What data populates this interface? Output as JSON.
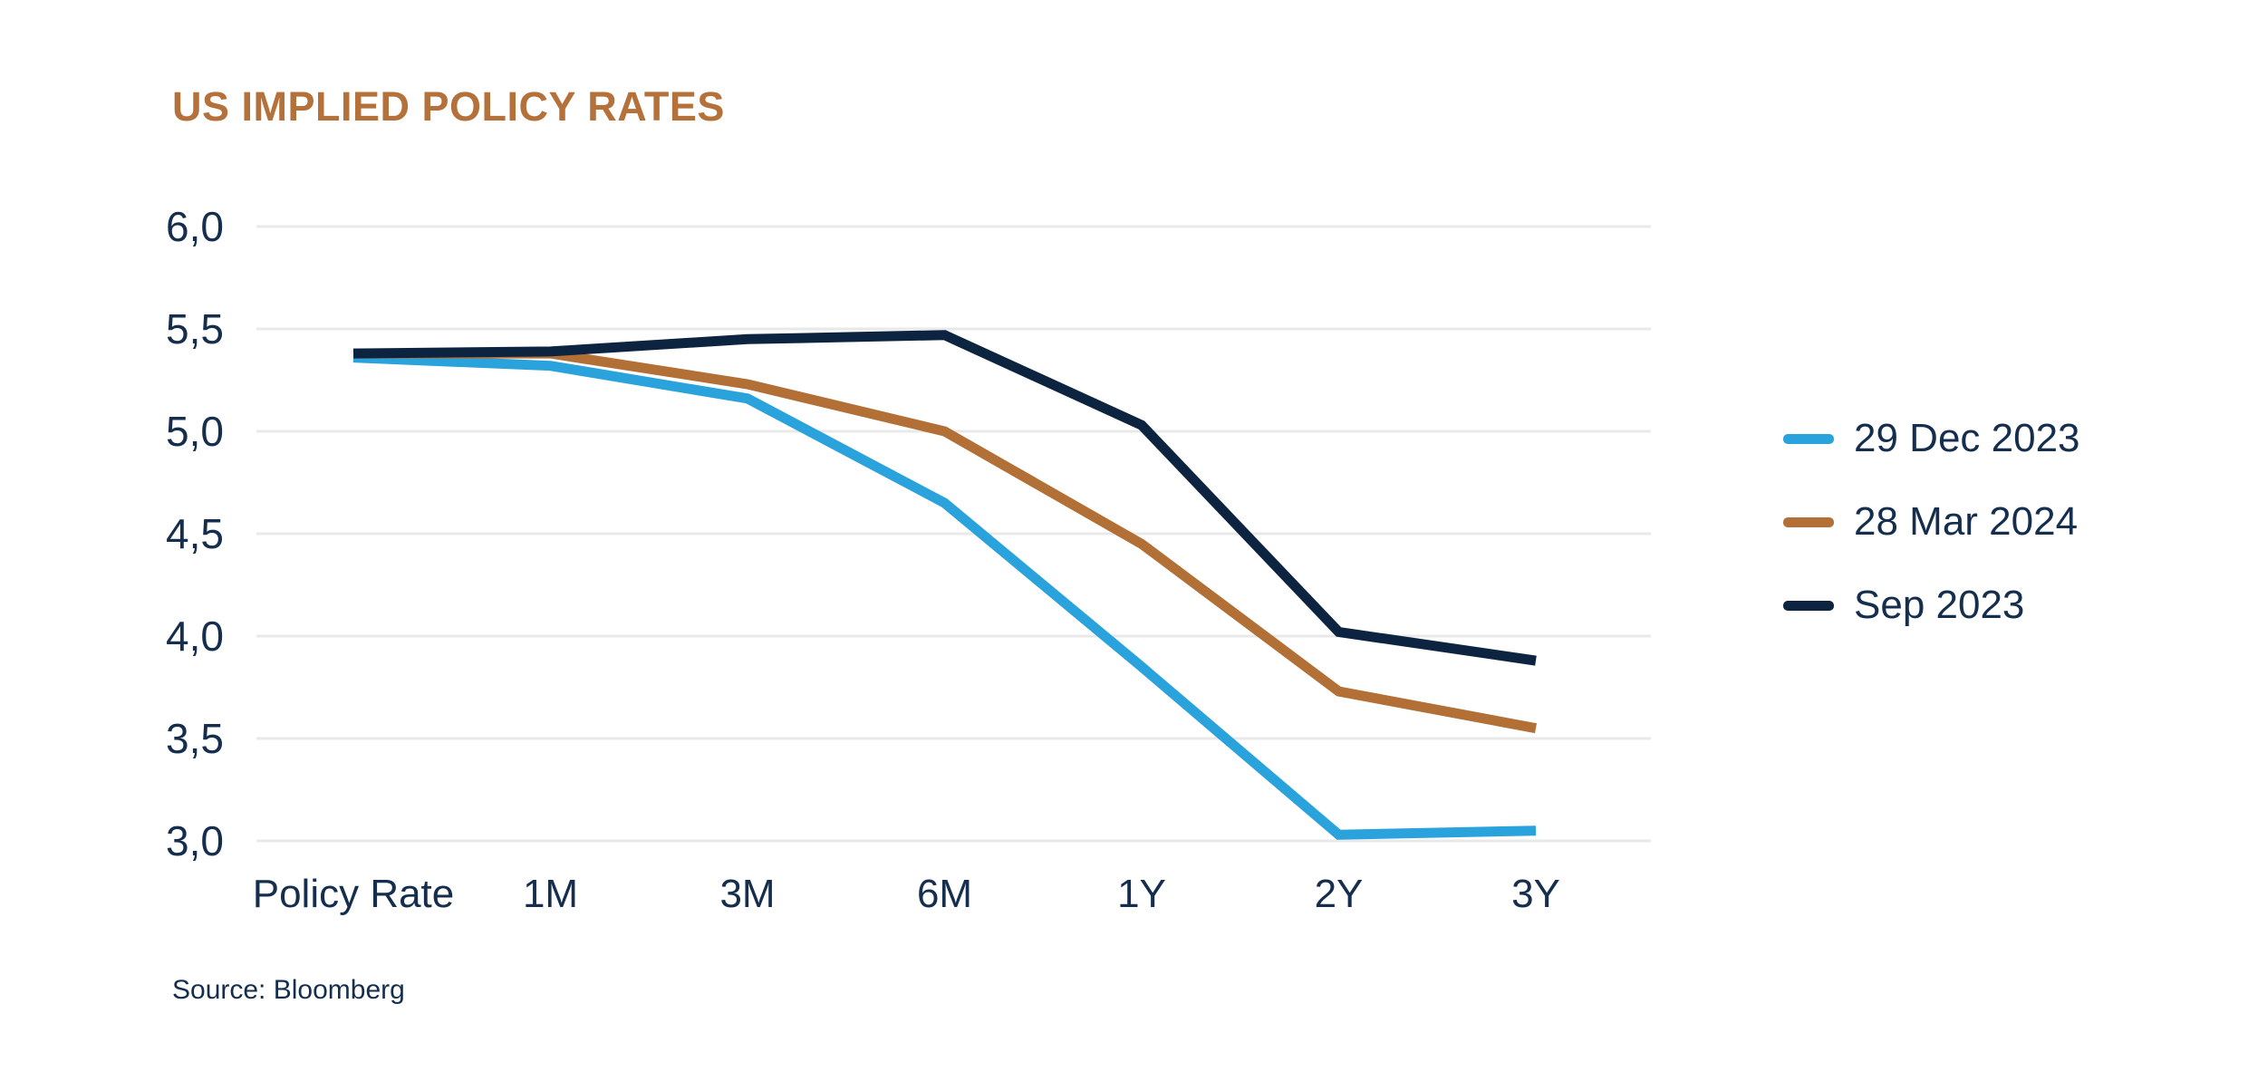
{
  "title": "US IMPLIED POLICY RATES",
  "source": "Source: Bloomberg",
  "colors": {
    "title": "#B5713A",
    "axis_text": "#152E4E",
    "gridline": "#E9E9E9",
    "background": "#FFFFFF",
    "series_blue": "#2AA2DB",
    "series_orange": "#B26F36",
    "series_navy": "#0D2440"
  },
  "chart_data": {
    "type": "line",
    "title": "US IMPLIED POLICY RATES",
    "categories": [
      "Policy Rate",
      "1M",
      "3M",
      "6M",
      "1Y",
      "2Y",
      "3Y"
    ],
    "series": [
      {
        "name": "29 Dec 2023",
        "color": "#2AA2DB",
        "values": [
          5.36,
          5.32,
          5.16,
          4.65,
          3.85,
          3.03,
          3.05
        ]
      },
      {
        "name": "28 Mar 2024",
        "color": "#B26F36",
        "values": [
          5.38,
          5.38,
          5.23,
          5.0,
          4.45,
          3.73,
          3.55
        ]
      },
      {
        "name": "Sep 2023",
        "color": "#0D2440",
        "values": [
          5.38,
          5.39,
          5.45,
          5.47,
          5.03,
          4.02,
          3.88
        ]
      }
    ],
    "xlabel": "",
    "ylabel": "",
    "ylim": [
      3.0,
      6.0
    ],
    "y_ticks": [
      6.0,
      5.5,
      5.0,
      4.5,
      4.0,
      3.5,
      3.0
    ],
    "y_tick_labels": [
      "6,0",
      "5,5",
      "5,0",
      "4,5",
      "4,0",
      "3,5",
      "3,0"
    ],
    "decimal_separator": ",",
    "grid": "horizontal",
    "legend_position": "right",
    "line_width": 11
  }
}
